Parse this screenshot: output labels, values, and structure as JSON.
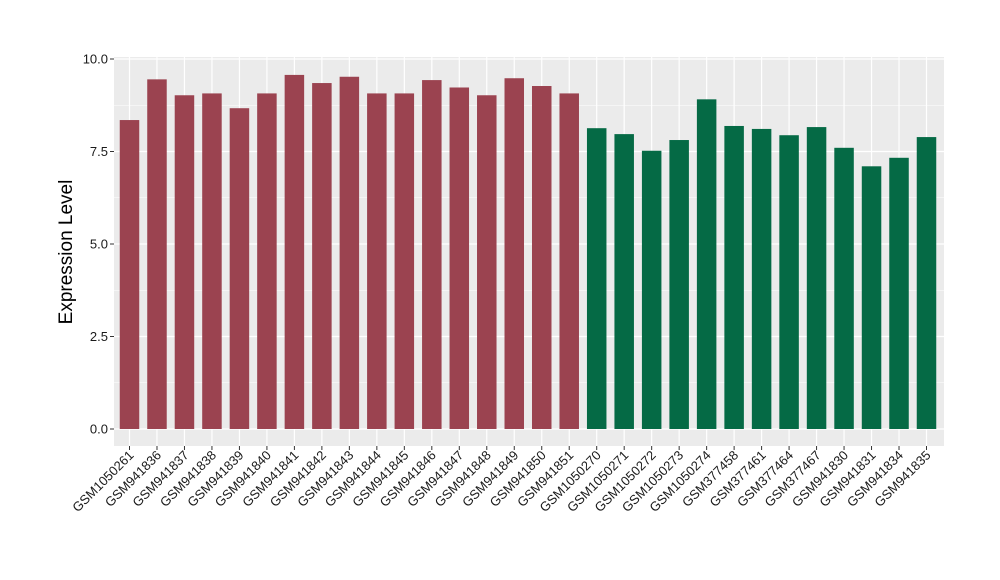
{
  "chart_data": {
    "type": "bar",
    "title": "",
    "xlabel": "",
    "ylabel": "Expression Level",
    "ylim": [
      0,
      10
    ],
    "yticks": [
      0.0,
      2.5,
      5.0,
      7.5,
      10.0
    ],
    "ytick_labels": [
      "0.0",
      "2.5",
      "5.0",
      "7.5",
      "10.0"
    ],
    "grid": true,
    "legend": "none",
    "categories": [
      "GSM1050261",
      "GSM941836",
      "GSM941837",
      "GSM941838",
      "GSM941839",
      "GSM941840",
      "GSM941841",
      "GSM941842",
      "GSM941843",
      "GSM941844",
      "GSM941845",
      "GSM941846",
      "GSM941847",
      "GSM941848",
      "GSM941849",
      "GSM941850",
      "GSM941851",
      "GSM1050270",
      "GSM1050271",
      "GSM1050272",
      "GSM1050273",
      "GSM1050274",
      "GSM377458",
      "GSM377461",
      "GSM377464",
      "GSM377467",
      "GSM941830",
      "GSM941831",
      "GSM941834",
      "GSM941835"
    ],
    "values": [
      8.35,
      9.45,
      9.02,
      9.07,
      8.67,
      9.07,
      9.57,
      9.35,
      9.52,
      9.07,
      9.07,
      9.43,
      9.23,
      9.02,
      9.48,
      9.27,
      9.07,
      8.13,
      7.97,
      7.52,
      7.81,
      8.91,
      8.19,
      8.11,
      7.94,
      8.16,
      7.6,
      7.1,
      7.33,
      7.89
    ],
    "bar_colors": [
      "#9b4350",
      "#9b4350",
      "#9b4350",
      "#9b4350",
      "#9b4350",
      "#9b4350",
      "#9b4350",
      "#9b4350",
      "#9b4350",
      "#9b4350",
      "#9b4350",
      "#9b4350",
      "#9b4350",
      "#9b4350",
      "#9b4350",
      "#9b4350",
      "#9b4350",
      "#056a45",
      "#056a45",
      "#056a45",
      "#056a45",
      "#056a45",
      "#056a45",
      "#056a45",
      "#056a45",
      "#056a45",
      "#056a45",
      "#056a45",
      "#056a45",
      "#056a45"
    ],
    "panel_background": "#ebebeb",
    "grid_color": "#ffffff"
  }
}
